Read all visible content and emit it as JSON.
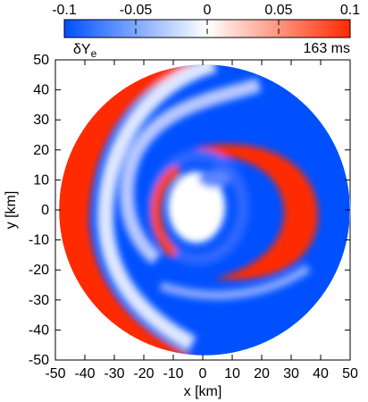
{
  "chart_data": {
    "type": "heatmap",
    "colorbar": {
      "ticks": [
        "-0.1",
        "-0.05",
        "0",
        "0.05",
        "0.1"
      ],
      "tick_values": [
        -0.1,
        -0.05,
        0,
        0.05,
        0.1
      ],
      "range": [
        -0.1,
        0.1
      ],
      "label_base": "δY",
      "label_sub": "e",
      "time_label": "163 ms",
      "colors": {
        "low": "#0050ff",
        "mid": "#ffffff",
        "high": "#ff2a00"
      }
    },
    "xlabel": "x [km]",
    "ylabel": "y [km]",
    "xlim": [
      -50,
      50
    ],
    "ylim": [
      -50,
      50
    ],
    "xticks": [
      -50,
      -40,
      -30,
      -20,
      -10,
      0,
      10,
      20,
      30,
      40,
      50
    ],
    "yticks": [
      -50,
      -40,
      -30,
      -20,
      -10,
      0,
      10,
      20,
      30,
      40,
      50
    ],
    "disk_radius": 48,
    "features": [
      {
        "name": "outer-left-crescent",
        "sign": "positive",
        "value": 0.1
      },
      {
        "name": "outer-right-region",
        "sign": "negative",
        "value": -0.1
      },
      {
        "name": "inner-right-crescent",
        "sign": "positive",
        "value": 0.1
      },
      {
        "name": "inner-spiral-band",
        "sign": "negative",
        "value": -0.08
      },
      {
        "name": "central-core",
        "sign": "neutral",
        "value": 0
      }
    ]
  }
}
